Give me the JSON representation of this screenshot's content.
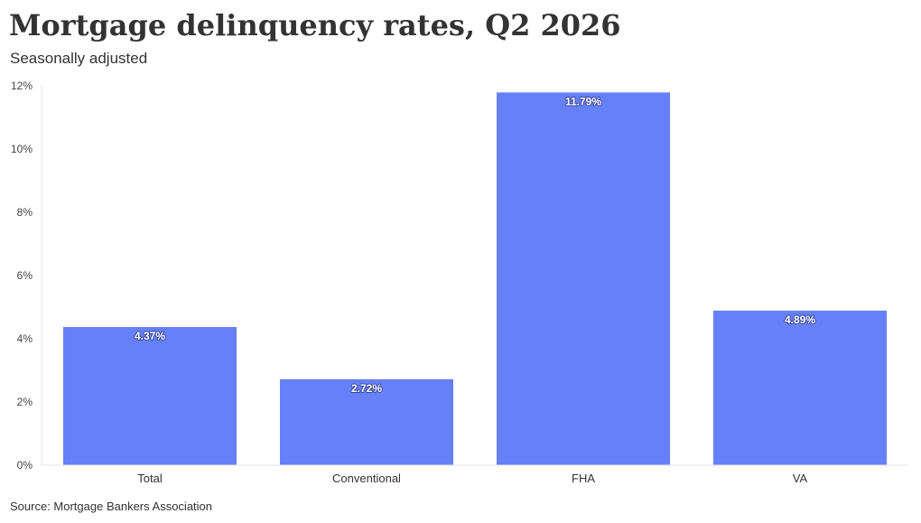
{
  "chart_data": {
    "type": "bar",
    "title": "Mortgage delinquency rates, Q2 2026",
    "subtitle": "Seasonally adjusted",
    "source": "Source: Mortgage Bankers Association",
    "categories": [
      "Total",
      "Conventional",
      "FHA",
      "VA"
    ],
    "values": [
      4.37,
      2.72,
      11.79,
      4.89
    ],
    "data_labels": [
      "4.37%",
      "2.72%",
      "11.79%",
      "4.89%"
    ],
    "xlabel": "",
    "ylabel": "",
    "ylim": [
      0,
      12
    ],
    "yticks": [
      0,
      2,
      4,
      6,
      8,
      10,
      12
    ],
    "ytick_labels": [
      "0%",
      "2%",
      "4%",
      "6%",
      "8%",
      "10%",
      "12%"
    ],
    "grid": false,
    "legend": "none",
    "bar_color": "#6680f7"
  }
}
